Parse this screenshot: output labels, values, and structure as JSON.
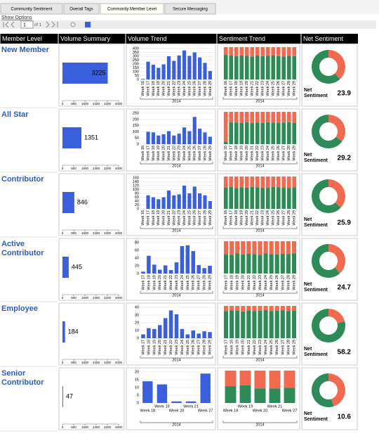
{
  "tabs": [
    "Community Sentiment",
    "Overall Tags",
    "Community Member Level",
    "Secure Messaging"
  ],
  "show_options": "Show Options",
  "pager": {
    "page": "1",
    "of": "of 1"
  },
  "columns": [
    "Member Level",
    "Volume Summary",
    "Volume Trend",
    "Sentiment Trend",
    "Net Sentiment"
  ],
  "rows": [
    {
      "member_level": "New Member",
      "volume_summary": {
        "type": "hbar",
        "values": [
          3225
        ],
        "xlim": [
          0,
          4000
        ],
        "xticks": [
          0,
          800,
          1600,
          2400,
          3200,
          4000
        ],
        "color": "#3a5fdc"
      },
      "volume_trend": {
        "type": "bar",
        "categories": [
          "Week 16",
          "Week 17",
          "Week 18",
          "Week 19",
          "Week 20",
          "Week 21",
          "Week 22",
          "Week 23",
          "Week 24",
          "Week 25",
          "Week 26",
          "Week 27",
          "Week 28",
          "Week 29"
        ],
        "group_label": "2014",
        "values": [
          8,
          230,
          190,
          150,
          195,
          300,
          240,
          310,
          375,
          305,
          350,
          285,
          215,
          110
        ],
        "ylim": [
          0,
          400
        ],
        "yticks": [
          0,
          50,
          100,
          150,
          200,
          250,
          300,
          350,
          400
        ],
        "color": "#3a5fdc"
      },
      "sentiment_trend": {
        "type": "stacked_bar",
        "categories": [
          "Week 16",
          "Week 17",
          "Week 18",
          "Week 19",
          "Week 20",
          "Week 21",
          "Week 22",
          "Week 23",
          "Week 24",
          "Week 25",
          "Week 26",
          "Week 27",
          "Week 28",
          "Week 29"
        ],
        "group_label": "2014",
        "ylim": [
          0,
          100
        ],
        "series": [
          {
            "color": "#2e8b57",
            "values": [
              76,
              74,
              72,
              74,
              73,
              71,
              74,
              72,
              73,
              74,
              72,
              71,
              73,
              72
            ]
          },
          {
            "color": "#f26a4f",
            "values": [
              24,
              26,
              28,
              26,
              27,
              29,
              26,
              28,
              27,
              26,
              28,
              29,
              27,
              28
            ]
          }
        ]
      },
      "net_sentiment": {
        "type": "donut",
        "label": "Net Sentiment",
        "value": 23.9,
        "values": [
          38,
          62
        ],
        "colors": [
          "#f26a4f",
          "#2e8b57"
        ]
      }
    },
    {
      "member_level": "All Star",
      "volume_summary": {
        "type": "hbar",
        "values": [
          1351
        ],
        "xlim": [
          0,
          4000
        ],
        "xticks": [
          0,
          800,
          1600,
          2400,
          3200,
          4000
        ],
        "color": "#3a5fdc"
      },
      "volume_trend": {
        "type": "bar",
        "categories": [
          "Week 16",
          "Week 17",
          "Week 18",
          "Week 19",
          "Week 20",
          "Week 21",
          "Week 22",
          "Week 23",
          "Week 24",
          "Week 25",
          "Week 26",
          "Week 27",
          "Week 28",
          "Week 29"
        ],
        "group_label": "2014",
        "values": [
          0,
          100,
          95,
          70,
          80,
          105,
          70,
          85,
          135,
          105,
          220,
          125,
          95,
          60
        ],
        "ylim": [
          0,
          250
        ],
        "yticks": [
          0,
          50,
          100,
          150,
          200,
          250
        ],
        "color": "#3a5fdc"
      },
      "sentiment_trend": {
        "type": "stacked_bar",
        "categories": [
          "Week 16",
          "Week 17",
          "Week 18",
          "Week 19",
          "Week 20",
          "Week 21",
          "Week 22",
          "Week 23",
          "Week 24",
          "Week 25",
          "Week 26",
          "Week 27",
          "Week 28",
          "Week 29"
        ],
        "group_label": "2014",
        "ylim": [
          0,
          100
        ],
        "series": [
          {
            "color": "#2e8b57",
            "values": [
              8,
              68,
              67,
              66,
              68,
              65,
              67,
              66,
              68,
              67,
              66,
              67,
              68,
              66
            ]
          },
          {
            "color": "#f26a4f",
            "values": [
              92,
              32,
              33,
              34,
              32,
              35,
              33,
              34,
              32,
              33,
              34,
              33,
              32,
              34
            ]
          }
        ]
      },
      "net_sentiment": {
        "type": "donut",
        "label": "Net Sentiment",
        "value": 29.2,
        "values": [
          35,
          65
        ],
        "colors": [
          "#f26a4f",
          "#2e8b57"
        ]
      }
    },
    {
      "member_level": "Contributor",
      "volume_summary": {
        "type": "hbar",
        "values": [
          846
        ],
        "xlim": [
          0,
          4000
        ],
        "xticks": [
          0,
          800,
          1600,
          2400,
          3200,
          4000
        ],
        "color": "#3a5fdc"
      },
      "volume_trend": {
        "type": "bar",
        "categories": [
          "Week 16",
          "Week 17",
          "Week 18",
          "Week 19",
          "Week 20",
          "Week 21",
          "Week 22",
          "Week 23",
          "Week 24",
          "Week 25",
          "Week 26",
          "Week 27",
          "Week 28",
          "Week 29"
        ],
        "group_label": "2014",
        "values": [
          0,
          70,
          60,
          50,
          60,
          95,
          70,
          75,
          120,
          80,
          115,
          80,
          70,
          40
        ],
        "ylim": [
          0,
          160
        ],
        "yticks": [
          0,
          20,
          40,
          60,
          80,
          100,
          120,
          140,
          160
        ],
        "color": "#3a5fdc"
      },
      "sentiment_trend": {
        "type": "stacked_bar",
        "categories": [
          "Week 16",
          "Week 17",
          "Week 18",
          "Week 19",
          "Week 20",
          "Week 21",
          "Week 22",
          "Week 23",
          "Week 24",
          "Week 25",
          "Week 26",
          "Week 27",
          "Week 28",
          "Week 29"
        ],
        "group_label": "2014",
        "ylim": [
          0,
          100
        ],
        "series": [
          {
            "color": "#2e8b57",
            "values": [
              66,
              68,
              65,
              67,
              66,
              68,
              67,
              65,
              66,
              68,
              67,
              66,
              65,
              67
            ]
          },
          {
            "color": "#f26a4f",
            "values": [
              34,
              32,
              35,
              33,
              34,
              32,
              33,
              35,
              34,
              32,
              33,
              34,
              35,
              33
            ]
          }
        ]
      },
      "net_sentiment": {
        "type": "donut",
        "label": "Net Sentiment",
        "value": 25.9,
        "values": [
          37,
          63
        ],
        "colors": [
          "#f26a4f",
          "#2e8b57"
        ]
      }
    },
    {
      "member_level": "Active Contributor",
      "volume_summary": {
        "type": "hbar",
        "values": [
          445
        ],
        "xlim": [
          0,
          4000
        ],
        "xticks": [
          0,
          800,
          1600,
          2400,
          3200,
          4000
        ],
        "color": "#3a5fdc"
      },
      "volume_trend": {
        "type": "bar",
        "categories": [
          "Week 17",
          "Week 18",
          "Week 19",
          "Week 20",
          "Week 21",
          "Week 22",
          "Week 23",
          "Week 24",
          "Week 25",
          "Week 26",
          "Week 27",
          "Week 28",
          "Week 29"
        ],
        "group_label": "2014",
        "values": [
          5,
          46,
          23,
          10,
          21,
          9,
          29,
          71,
          73,
          58,
          22,
          14,
          20
        ],
        "ylim": [
          0,
          80
        ],
        "yticks": [
          0,
          20,
          40,
          60,
          80
        ],
        "color": "#3a5fdc"
      },
      "sentiment_trend": {
        "type": "stacked_bar",
        "categories": [
          "Week 17",
          "Week 18",
          "Week 19",
          "Week 20",
          "Week 21",
          "Week 22",
          "Week 23",
          "Week 24",
          "Week 25",
          "Week 26",
          "Week 27",
          "Week 28",
          "Week 29"
        ],
        "group_label": "2014",
        "ylim": [
          0,
          100
        ],
        "series": [
          {
            "color": "#2e8b57",
            "values": [
              60,
              58,
              62,
              59,
              61,
              60,
              58,
              62,
              60,
              59,
              61,
              60,
              62
            ]
          },
          {
            "color": "#f26a4f",
            "values": [
              40,
              42,
              38,
              41,
              39,
              40,
              42,
              38,
              40,
              41,
              39,
              40,
              38
            ]
          }
        ]
      },
      "net_sentiment": {
        "type": "donut",
        "label": "Net Sentiment",
        "value": 24.7,
        "values": [
          38,
          62
        ],
        "colors": [
          "#f26a4f",
          "#2e8b57"
        ]
      }
    },
    {
      "member_level": "Employee",
      "volume_summary": {
        "type": "hbar",
        "values": [
          184
        ],
        "xlim": [
          0,
          4000
        ],
        "xticks": [
          0,
          800,
          1600,
          2400,
          3200,
          4000
        ],
        "color": "#3a5fdc"
      },
      "volume_trend": {
        "type": "bar",
        "categories": [
          "Week 17",
          "Week 18",
          "Week 19",
          "Week 20",
          "Week 21",
          "Week 22",
          "Week 23",
          "Week 24",
          "Week 25",
          "Week 26",
          "Week 27",
          "Week 28",
          "Week 29"
        ],
        "group_label": "2014",
        "values": [
          5,
          13,
          12,
          17,
          26,
          36,
          31,
          12,
          5,
          10,
          6,
          9,
          8
        ],
        "ylim": [
          0,
          40
        ],
        "yticks": [
          0,
          10,
          20,
          30,
          40
        ],
        "color": "#3a5fdc"
      },
      "sentiment_trend": {
        "type": "stacked_bar",
        "categories": [
          "Week 17",
          "Week 18",
          "Week 19",
          "Week 20",
          "Week 21",
          "Week 22",
          "Week 23",
          "Week 24",
          "Week 25",
          "Week 26",
          "Week 27",
          "Week 28",
          "Week 29"
        ],
        "group_label": "2014",
        "ylim": [
          0,
          100
        ],
        "series": [
          {
            "color": "#2e8b57",
            "values": [
              84,
              86,
              85,
              83,
              86,
              84,
              85,
              87,
              84,
              85,
              86,
              84,
              85
            ]
          },
          {
            "color": "#f26a4f",
            "values": [
              16,
              14,
              15,
              17,
              14,
              16,
              15,
              13,
              16,
              15,
              14,
              16,
              15
            ]
          }
        ]
      },
      "net_sentiment": {
        "type": "donut",
        "label": "Net Sentiment",
        "value": 58.2,
        "values": [
          21,
          79
        ],
        "colors": [
          "#f26a4f",
          "#2e8b57"
        ]
      }
    },
    {
      "member_level": "Senior Contributor",
      "volume_summary": {
        "type": "hbar",
        "values": [
          47
        ],
        "xlim": [
          0,
          4000
        ],
        "xticks": [
          0,
          800,
          1600,
          2400,
          3200,
          4000
        ],
        "color": "#3a5fdc"
      },
      "volume_trend": {
        "type": "bar",
        "categories": [
          "Week 18",
          "Week 19",
          "Week 20",
          "Week 21",
          "Week 27"
        ],
        "group_label": "2014",
        "values": [
          14,
          12,
          1,
          1,
          19
        ],
        "ylim": [
          0,
          20
        ],
        "yticks": [
          0,
          5,
          10,
          15,
          20
        ],
        "color": "#3a5fdc"
      },
      "sentiment_trend": {
        "type": "stacked_bar",
        "categories": [
          "Week 18",
          "Week 19",
          "Week 20",
          "Week 21",
          "Week 27"
        ],
        "group_label": "2014",
        "ylim": [
          0,
          100
        ],
        "series": [
          {
            "color": "#2e8b57",
            "values": [
              52,
              55,
              45,
              45,
              47
            ]
          },
          {
            "color": "#f26a4f",
            "values": [
              48,
              45,
              55,
              55,
              53
            ]
          }
        ]
      },
      "net_sentiment": {
        "type": "donut",
        "label": "Net Sentiment",
        "value": 10.6,
        "values": [
          45,
          55
        ],
        "colors": [
          "#f26a4f",
          "#2e8b57"
        ]
      }
    }
  ]
}
